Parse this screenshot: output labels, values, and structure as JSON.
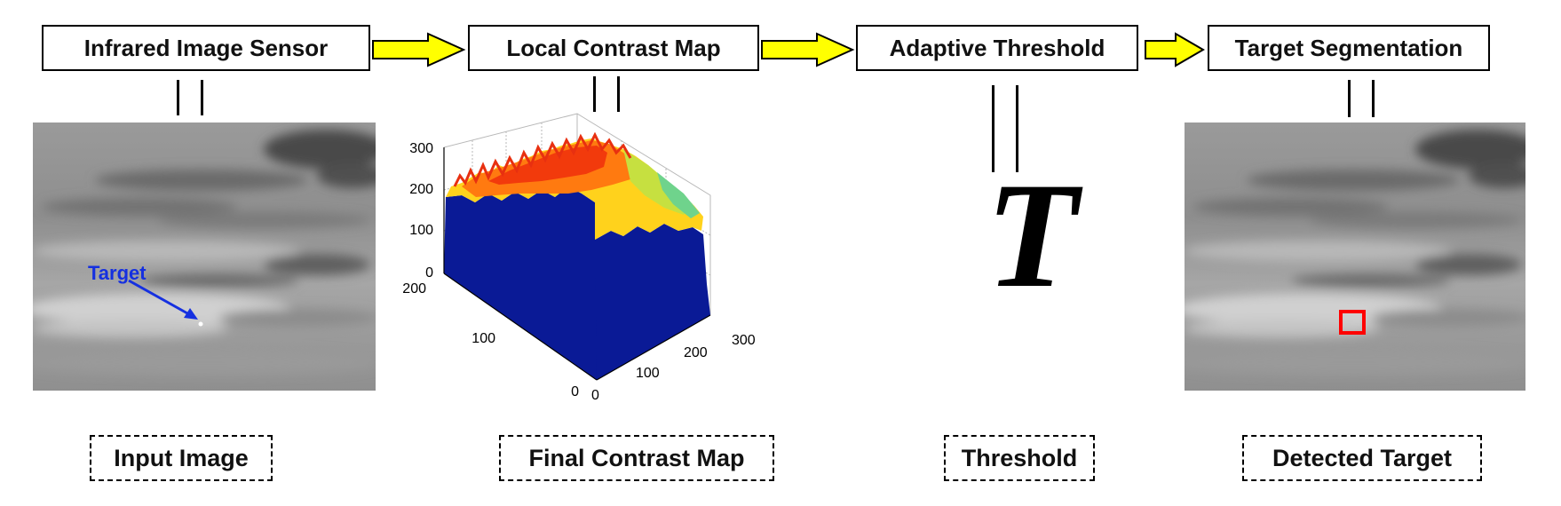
{
  "stages": [
    {
      "label": "Infrared Image Sensor"
    },
    {
      "label": "Local Contrast Map"
    },
    {
      "label": "Adaptive Threshold"
    },
    {
      "label": "Target Segmentation"
    }
  ],
  "captions": [
    {
      "label": "Input Image"
    },
    {
      "label": "Final Contrast Map"
    },
    {
      "label": "Threshold"
    },
    {
      "label": "Detected Target"
    }
  ],
  "input_image": {
    "annotation": "Target",
    "annotation_color": "#1530e0"
  },
  "detected_image": {
    "marker_color": "#ff0000"
  },
  "threshold": {
    "symbol": "T"
  },
  "contrast_plot": {
    "z_ticks": [
      "300",
      "200",
      "100",
      "0"
    ],
    "y_ticks": [
      "200",
      "100",
      "0"
    ],
    "x_ticks": [
      "0",
      "100",
      "200",
      "300"
    ]
  },
  "colors": {
    "arrow_fill": "#ffff00",
    "surface_base": "#0a1a96"
  }
}
